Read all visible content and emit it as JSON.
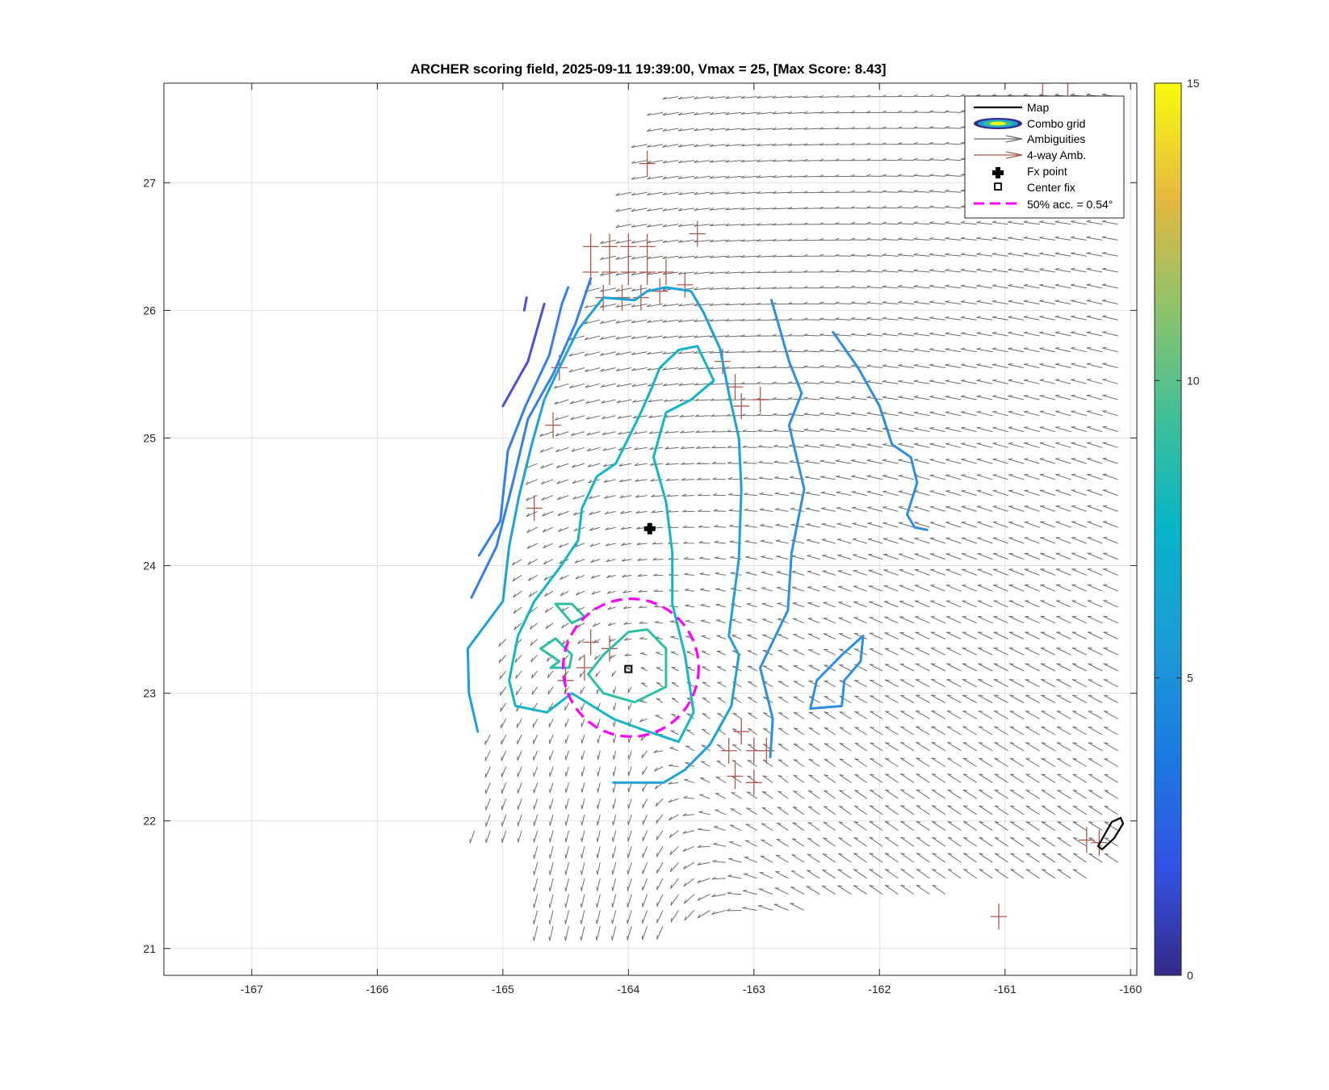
{
  "chart_data": {
    "type": "contour",
    "title": "ARCHER scoring field, 2025-09-11 19:39:00, Vmax = 25, [Max Score: 8.43]",
    "xlim": [
      -167.7,
      -159.95
    ],
    "ylim": [
      20.79,
      27.78
    ],
    "xticks": [
      -167,
      -166,
      -165,
      -164,
      -163,
      -162,
      -161,
      -160
    ],
    "yticks": [
      21,
      22,
      23,
      24,
      25,
      26,
      27
    ],
    "grid": true,
    "legend": {
      "position": "top-right",
      "entries": [
        "Map",
        "Combo grid",
        "Ambiguities",
        "4-way Amb.",
        "Fx point",
        "Center fix",
        "50% acc. = 0.54°"
      ]
    },
    "colorbar": {
      "range": [
        0,
        15
      ],
      "ticks": [
        0,
        5,
        10,
        15
      ],
      "colormap": "parula"
    },
    "fx_point": {
      "x": -163.83,
      "y": 24.29
    },
    "center_fix": {
      "x": -164.0,
      "y": 23.19
    },
    "accuracy_circle": {
      "center_x": -163.98,
      "center_y": 23.2,
      "radius_deg": 0.54,
      "color": "#ff00ff"
    },
    "contours": [
      {
        "level": 2.5,
        "color": "#4a4fe0",
        "points": [
          [
            -165.0,
            25.25
          ],
          [
            -164.8,
            25.6
          ],
          [
            -164.67,
            26.05
          ]
        ]
      },
      {
        "level": 2.5,
        "color": "#4a4fe0",
        "points": [
          [
            -164.83,
            26.0
          ],
          [
            -164.81,
            26.1
          ]
        ]
      },
      {
        "level": 4.0,
        "color": "#3480e6",
        "points": [
          [
            -165.19,
            24.08
          ],
          [
            -165.02,
            24.35
          ],
          [
            -164.96,
            24.9
          ],
          [
            -164.82,
            25.25
          ],
          [
            -164.63,
            25.65
          ],
          [
            -164.53,
            26.05
          ],
          [
            -164.48,
            26.18
          ]
        ]
      },
      {
        "level": 4.0,
        "color": "#3480e6",
        "points": [
          [
            -165.25,
            23.75
          ],
          [
            -165.05,
            24.15
          ],
          [
            -164.92,
            24.65
          ],
          [
            -164.8,
            25.15
          ],
          [
            -164.6,
            25.5
          ],
          [
            -164.42,
            25.9
          ],
          [
            -164.3,
            26.25
          ]
        ]
      },
      {
        "level": 5.2,
        "color": "#2d8fe3",
        "points": [
          [
            -162.86,
            26.08
          ],
          [
            -162.72,
            25.6
          ],
          [
            -162.62,
            25.35
          ],
          [
            -162.72,
            25.1
          ],
          [
            -162.6,
            24.6
          ],
          [
            -162.7,
            24.1
          ],
          [
            -162.73,
            23.65
          ],
          [
            -162.95,
            23.2
          ],
          [
            -162.85,
            22.8
          ],
          [
            -162.87,
            22.5
          ]
        ]
      },
      {
        "level": 5.2,
        "color": "#2d8fe3",
        "points": [
          [
            -162.37,
            25.83
          ],
          [
            -162.17,
            25.55
          ],
          [
            -162.0,
            25.25
          ],
          [
            -161.9,
            24.95
          ],
          [
            -161.75,
            24.85
          ],
          [
            -161.7,
            24.65
          ],
          [
            -161.78,
            24.4
          ],
          [
            -161.72,
            24.3
          ],
          [
            -161.62,
            24.28
          ]
        ]
      },
      {
        "level": 5.2,
        "color": "#2d8fe3",
        "points": [
          [
            -162.55,
            22.88
          ],
          [
            -162.5,
            23.1
          ],
          [
            -162.3,
            23.3
          ],
          [
            -162.13,
            23.45
          ],
          [
            -162.15,
            23.25
          ],
          [
            -162.28,
            23.1
          ],
          [
            -162.3,
            22.9
          ],
          [
            -162.55,
            22.88
          ]
        ]
      },
      {
        "level": 6.0,
        "color": "#1ea1d9",
        "points": [
          [
            -165.2,
            22.7
          ],
          [
            -165.27,
            23.0
          ],
          [
            -165.28,
            23.35
          ],
          [
            -165.0,
            23.72
          ],
          [
            -164.95,
            24.15
          ],
          [
            -164.87,
            24.55
          ],
          [
            -164.77,
            24.95
          ],
          [
            -164.67,
            25.3
          ],
          [
            -164.55,
            25.55
          ],
          [
            -164.4,
            25.85
          ],
          [
            -164.2,
            26.1
          ],
          [
            -163.95,
            26.08
          ],
          [
            -163.85,
            26.15
          ],
          [
            -163.7,
            26.18
          ],
          [
            -163.5,
            26.15
          ],
          [
            -163.4,
            25.98
          ],
          [
            -163.27,
            25.7
          ],
          [
            -163.2,
            25.35
          ],
          [
            -163.12,
            25.0
          ],
          [
            -163.1,
            24.6
          ],
          [
            -163.12,
            24.05
          ],
          [
            -163.2,
            23.45
          ],
          [
            -163.12,
            23.3
          ],
          [
            -163.18,
            22.9
          ],
          [
            -163.35,
            22.6
          ],
          [
            -163.55,
            22.4
          ],
          [
            -163.72,
            22.3
          ],
          [
            -164.0,
            22.3
          ],
          [
            -164.12,
            22.3
          ]
        ]
      },
      {
        "level": 7.0,
        "color": "#14b5c6",
        "points": [
          [
            -164.65,
            22.85
          ],
          [
            -164.45,
            23.0
          ],
          [
            -164.12,
            22.8
          ],
          [
            -163.9,
            22.72
          ],
          [
            -163.6,
            22.62
          ],
          [
            -163.48,
            22.85
          ],
          [
            -163.55,
            23.3
          ],
          [
            -163.65,
            23.7
          ],
          [
            -163.65,
            24.1
          ],
          [
            -163.7,
            24.5
          ],
          [
            -163.8,
            24.85
          ],
          [
            -163.7,
            25.2
          ],
          [
            -163.5,
            25.3
          ],
          [
            -163.32,
            25.45
          ],
          [
            -163.45,
            25.72
          ],
          [
            -163.6,
            25.69
          ],
          [
            -163.75,
            25.55
          ],
          [
            -163.82,
            25.38
          ],
          [
            -163.9,
            25.2
          ],
          [
            -164.0,
            25.0
          ],
          [
            -164.1,
            24.8
          ],
          [
            -164.25,
            24.7
          ],
          [
            -164.37,
            24.45
          ],
          [
            -164.4,
            24.2
          ],
          [
            -164.55,
            23.98
          ],
          [
            -164.75,
            23.72
          ],
          [
            -164.88,
            23.45
          ],
          [
            -164.95,
            23.1
          ],
          [
            -164.9,
            22.9
          ],
          [
            -164.65,
            22.85
          ]
        ]
      },
      {
        "level": 8.0,
        "color": "#2cbfa4",
        "points": [
          [
            -164.45,
            23.55
          ],
          [
            -164.58,
            23.7
          ],
          [
            -164.45,
            23.7
          ],
          [
            -164.35,
            23.6
          ],
          [
            -164.45,
            23.55
          ]
        ]
      },
      {
        "level": 8.0,
        "color": "#2cbfa4",
        "points": [
          [
            -164.55,
            23.25
          ],
          [
            -164.7,
            23.35
          ],
          [
            -164.58,
            23.43
          ],
          [
            -164.45,
            23.3
          ],
          [
            -164.47,
            23.2
          ],
          [
            -164.62,
            23.2
          ],
          [
            -164.55,
            23.25
          ]
        ]
      },
      {
        "level": 8.0,
        "color": "#2cbfa4",
        "points": [
          [
            -164.0,
            23.48
          ],
          [
            -163.85,
            23.5
          ],
          [
            -163.7,
            23.35
          ],
          [
            -163.7,
            23.05
          ],
          [
            -163.95,
            22.93
          ],
          [
            -164.2,
            23.0
          ],
          [
            -164.32,
            23.15
          ],
          [
            -164.2,
            23.3
          ],
          [
            -164.0,
            23.48
          ]
        ]
      }
    ],
    "ambiguities": "wind-vector field, each vector drawn in grey",
    "four_way_ambiguities": "cross-shaped vectors drawn in brown"
  },
  "colors": {
    "ambiguity": "#6e6e6e",
    "four_way": "#b05a50",
    "grid": "#e0e0e0",
    "axes": "#262626",
    "map": "#000000"
  }
}
